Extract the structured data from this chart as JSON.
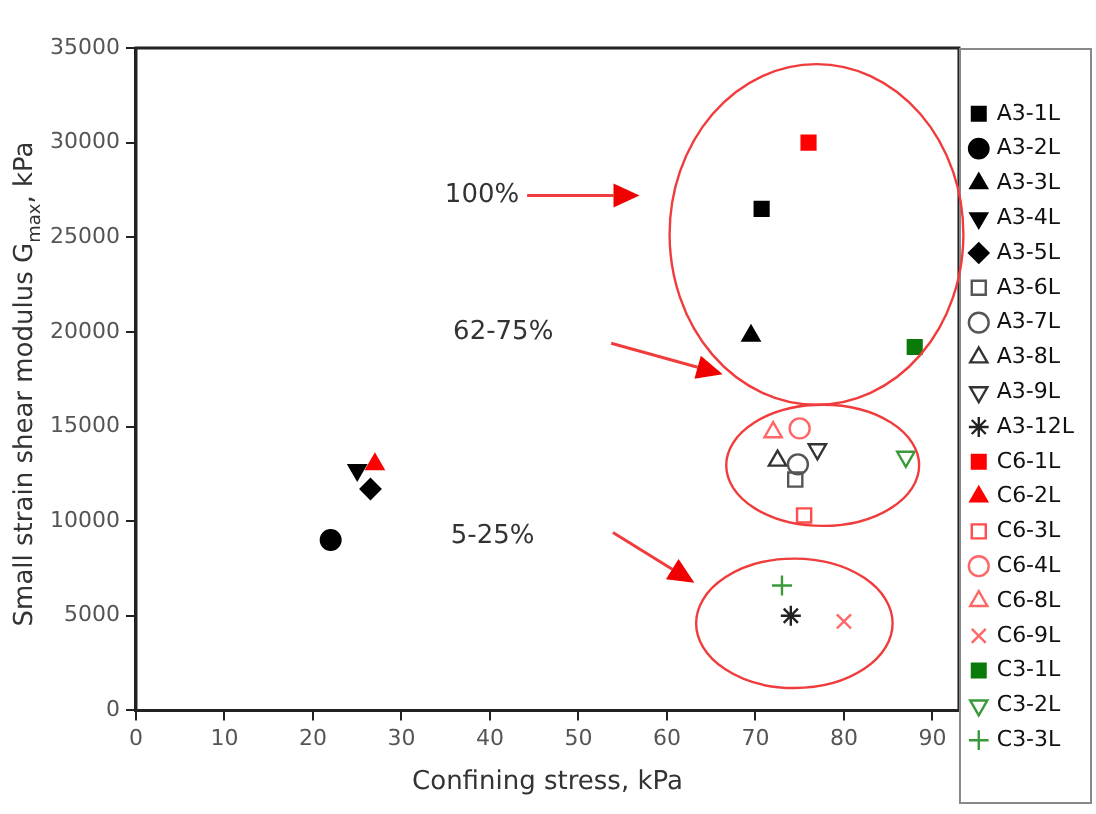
{
  "chart_data": {
    "type": "scatter",
    "xlabel": "Confining stress, kPa",
    "ylabel": "Small strain shear modulus G$_{max}$, kPa",
    "xlim": [
      0,
      93
    ],
    "xticks": [
      0,
      10,
      20,
      30,
      40,
      50,
      60,
      70,
      80,
      90
    ],
    "ylim": [
      0,
      35000
    ],
    "yticks": [
      0,
      5000,
      10000,
      15000,
      20000,
      25000,
      30000,
      35000
    ],
    "grid": false,
    "legend": "right",
    "annotations": [
      "100%",
      "62-75%",
      "5-25%"
    ],
    "series": [
      {
        "name": "A3-1L",
        "color": "#000000",
        "marker": "square",
        "x": [
          70.7
        ],
        "values": [
          26500
        ]
      },
      {
        "name": "A3-2L",
        "color": "#000000",
        "marker": "circle",
        "x": [
          22
        ],
        "values": [
          9000
        ]
      },
      {
        "name": "A3-3L",
        "color": "#000000",
        "marker": "triangle",
        "x": [
          69.5
        ],
        "values": [
          19800
        ]
      },
      {
        "name": "A3-4L",
        "color": "#000000",
        "marker": "triangle-down",
        "x": [
          25
        ],
        "values": [
          12700
        ]
      },
      {
        "name": "A3-5L",
        "color": "#000000",
        "marker": "diamond",
        "x": [
          26.5
        ],
        "values": [
          11700
        ]
      },
      {
        "name": "A3-6L",
        "color": "#555555",
        "marker": "square-open",
        "x": [
          74.5
        ],
        "values": [
          12200
        ]
      },
      {
        "name": "A3-7L",
        "color": "#555555",
        "marker": "circle-open",
        "x": [
          74.8
        ],
        "values": [
          13000
        ]
      },
      {
        "name": "A3-8L",
        "color": "#333333",
        "marker": "triangle-open",
        "x": [
          72.5
        ],
        "values": [
          13200
        ]
      },
      {
        "name": "A3-9L",
        "color": "#333333",
        "marker": "triangle-down-open",
        "x": [
          77
        ],
        "values": [
          13800
        ]
      },
      {
        "name": "A3-12L",
        "color": "#222222",
        "x": [
          74
        ],
        "values": [
          5000
        ]
      },
      {
        "name": "C6-1L",
        "color": "#ff0000",
        "marker": "square",
        "x": [
          76
        ],
        "values": [
          30000
        ]
      },
      {
        "name": "C6-2L",
        "color": "#ff0000",
        "marker": "triangle",
        "x": [
          27
        ],
        "values": [
          13000
        ]
      },
      {
        "name": "C6-3L",
        "color": "#ff4d4d",
        "marker": "square-open",
        "x": [
          75.5
        ],
        "values": [
          10300
        ]
      },
      {
        "name": "C6-4L",
        "color": "#ff6666",
        "marker": "circle-open",
        "x": [
          75
        ],
        "values": [
          14900
        ]
      },
      {
        "name": "C6-8L",
        "color": "#ff6666",
        "marker": "triangle-open",
        "x": [
          72
        ],
        "values": [
          14700
        ]
      },
      {
        "name": "C6-9L",
        "color": "#ff6666",
        "marker": "x",
        "x": [
          80
        ],
        "values": [
          4700
        ]
      },
      {
        "name": "C3-1L",
        "color": "#0a7a0a",
        "marker": "square",
        "x": [
          88
        ],
        "values": [
          19200
        ]
      },
      {
        "name": "C3-2L",
        "color": "#3a9a3a",
        "marker": "triangle-down-open",
        "x": [
          87
        ],
        "values": [
          13400
        ]
      },
      {
        "name": "C3-3L",
        "color": "#3a9a3a",
        "marker": "cross",
        "x": [
          73
        ],
        "values": [
          6600
        ]
      }
    ]
  }
}
